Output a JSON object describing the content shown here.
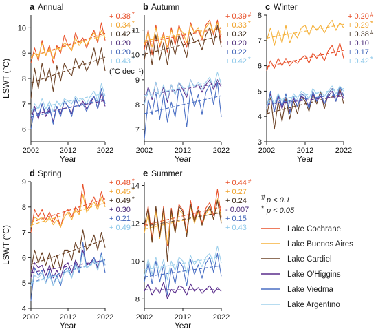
{
  "colors": {
    "Lake Cochrane": "#e8502a",
    "Lake Buenos Aires": "#f5b23c",
    "Lake Cardiel": "#7a4a2a",
    "Lake O'Higgins": "#4b2a78",
    "Lake Viedma": "#7b3fb0",
    "Lake Argentino": "#9fd1ec",
    "Lake Argentino (series)": "#9fd1ec",
    "Lake Viedma (blue)": "#4a73c9"
  },
  "series_order": [
    "Lake Cochrane",
    "Lake Buenos Aires",
    "Lake Cardiel",
    "Lake O'Higgins",
    "Lake Viedma",
    "Lake Argentino"
  ],
  "ylabel": "LSWT (°C)",
  "xlabel": "Year",
  "unit_note": "(°C dec⁻¹)",
  "significance": {
    "hash_note": "p < 0.1",
    "star_note": "p < 0.05"
  },
  "legend": {
    "items": [
      "Lake Cochrane",
      "Lake Buenos Aires",
      "Lake Cardiel",
      "Lake O'Higgins",
      "Lake Viedma",
      "Lake Argentino"
    ]
  },
  "chart_data": [
    {
      "type": "line",
      "panel_letter": "a",
      "title": "Annual",
      "x": [
        2002,
        2003,
        2004,
        2005,
        2006,
        2007,
        2008,
        2009,
        2010,
        2011,
        2012,
        2013,
        2014,
        2015,
        2016,
        2017,
        2018,
        2019,
        2020,
        2021,
        2022
      ],
      "xticks": [
        "2002",
        "2012",
        "2022"
      ],
      "ylim": [
        5.5,
        10.5
      ],
      "yticks": [
        "6",
        "7",
        "8",
        "9",
        "10"
      ],
      "series": [
        {
          "name": "Lake Cochrane",
          "trend": "+ 0.38",
          "sig": "*",
          "values": [
            8.6,
            9.2,
            8.7,
            9.5,
            8.9,
            9.3,
            8.6,
            9.3,
            9.0,
            9.7,
            9.3,
            9.1,
            9.8,
            9.4,
            9.6,
            9.2,
            9.6,
            9.9,
            9.4,
            10.2,
            9.5
          ]
        },
        {
          "name": "Lake Buenos Aires",
          "trend": "+ 0.34",
          "sig": "*",
          "values": [
            8.8,
            9.0,
            8.8,
            9.4,
            8.9,
            9.2,
            8.8,
            9.2,
            9.1,
            9.4,
            9.3,
            9.1,
            9.6,
            9.3,
            9.5,
            9.3,
            9.6,
            9.8,
            9.5,
            9.9,
            9.6
          ]
        },
        {
          "name": "Lake Cardiel",
          "trend": "+ 0.42",
          "sig": "*",
          "values": [
            7.2,
            8.4,
            7.6,
            8.6,
            7.9,
            8.4,
            7.5,
            8.5,
            7.9,
            8.6,
            8.3,
            8.1,
            8.8,
            8.4,
            8.7,
            8.3,
            8.6,
            9.2,
            8.5,
            9.2,
            8.3
          ]
        },
        {
          "name": "Lake O'Higgins",
          "trend": "+ 0.20",
          "sig": "",
          "values": [
            6.4,
            6.9,
            6.4,
            7.0,
            6.5,
            6.8,
            6.3,
            6.9,
            6.6,
            7.1,
            6.9,
            6.6,
            7.2,
            6.9,
            7.1,
            6.8,
            7.0,
            7.3,
            6.8,
            7.4,
            6.9
          ]
        },
        {
          "name": "Lake Viedma",
          "trend": "+ 0.20",
          "sig": "",
          "values": [
            6.0,
            6.8,
            6.5,
            7.0,
            6.6,
            6.9,
            6.2,
            6.9,
            6.5,
            7.1,
            6.9,
            6.5,
            7.2,
            6.9,
            7.0,
            6.7,
            7.1,
            7.3,
            6.8,
            7.6,
            7.0
          ]
        },
        {
          "name": "Lake Argentino",
          "trend": "+ 0.43",
          "sig": "*",
          "values": [
            6.5,
            7.0,
            6.8,
            7.2,
            6.8,
            7.1,
            6.7,
            7.1,
            6.9,
            7.2,
            7.1,
            7.0,
            7.3,
            7.1,
            7.2,
            7.0,
            7.3,
            7.5,
            7.1,
            7.8,
            7.3
          ]
        }
      ]
    },
    {
      "type": "line",
      "panel_letter": "b",
      "title": "Autumn",
      "x": [
        2002,
        2003,
        2004,
        2005,
        2006,
        2007,
        2008,
        2009,
        2010,
        2011,
        2012,
        2013,
        2014,
        2015,
        2016,
        2017,
        2018,
        2019,
        2020,
        2021,
        2022
      ],
      "xticks": [
        "2002",
        "2012",
        "2022"
      ],
      "ylim": [
        6.5,
        11.6
      ],
      "yticks": [
        "7",
        "8",
        "9",
        "10",
        "11"
      ],
      "series": [
        {
          "name": "Lake Cochrane",
          "trend": "+ 0.39",
          "sig": "#",
          "values": [
            10.2,
            11.0,
            10.0,
            11.2,
            10.3,
            10.9,
            10.1,
            11.1,
            10.4,
            11.2,
            10.7,
            10.3,
            11.3,
            10.9,
            11.0,
            10.6,
            11.2,
            11.4,
            10.8,
            11.4,
            10.5
          ]
        },
        {
          "name": "Lake Buenos Aires",
          "trend": "+ 0.33",
          "sig": "*",
          "values": [
            10.4,
            10.9,
            10.3,
            11.1,
            10.4,
            10.8,
            10.3,
            11.0,
            10.6,
            11.1,
            10.9,
            10.5,
            11.2,
            10.9,
            11.1,
            10.7,
            11.1,
            11.3,
            10.9,
            11.3,
            10.8
          ]
        },
        {
          "name": "Lake Cardiel",
          "trend": "+ 0.32",
          "sig": "",
          "values": [
            9.8,
            10.6,
            9.6,
            10.8,
            9.8,
            10.5,
            9.6,
            10.6,
            10.0,
            10.8,
            10.4,
            9.9,
            10.9,
            10.5,
            10.6,
            10.2,
            10.8,
            11.1,
            10.4,
            11.2,
            10.3
          ]
        },
        {
          "name": "Lake O'Higgins",
          "trend": "+ 0.20",
          "sig": "",
          "values": [
            8.0,
            8.7,
            8.2,
            8.9,
            8.3,
            8.7,
            8.1,
            8.8,
            8.4,
            8.9,
            8.6,
            8.3,
            9.0,
            8.7,
            8.8,
            8.5,
            8.8,
            9.0,
            8.6,
            9.0,
            8.7
          ]
        },
        {
          "name": "Lake Viedma",
          "trend": "+ 0.22",
          "sig": "",
          "values": [
            6.6,
            8.2,
            7.6,
            8.5,
            7.4,
            8.4,
            7.3,
            8.1,
            7.5,
            8.7,
            8.3,
            7.1,
            8.6,
            7.9,
            8.4,
            7.6,
            8.5,
            8.8,
            8.0,
            8.9,
            7.5
          ]
        },
        {
          "name": "Lake Argentino",
          "trend": "+ 0.42",
          "sig": "*",
          "values": [
            8.0,
            8.6,
            8.3,
            8.9,
            8.3,
            8.8,
            8.2,
            8.8,
            8.4,
            8.9,
            8.7,
            8.4,
            9.0,
            8.7,
            8.9,
            8.6,
            8.9,
            9.1,
            8.7,
            9.3,
            8.8
          ]
        }
      ]
    },
    {
      "type": "line",
      "panel_letter": "c",
      "title": "Winter",
      "x": [
        2002,
        2003,
        2004,
        2005,
        2006,
        2007,
        2008,
        2009,
        2010,
        2011,
        2012,
        2013,
        2014,
        2015,
        2016,
        2017,
        2018,
        2019,
        2020,
        2021,
        2022
      ],
      "xticks": [
        "2002",
        "2012",
        "2022"
      ],
      "ylim": [
        3,
        8
      ],
      "yticks": [
        "3",
        "4",
        "5",
        "6",
        "7",
        "8"
      ],
      "series": [
        {
          "name": "Lake Cochrane",
          "trend": "+ 0.20",
          "sig": "#",
          "values": [
            5.8,
            6.2,
            5.9,
            6.3,
            6.0,
            6.3,
            6.0,
            6.2,
            6.1,
            6.3,
            6.4,
            6.1,
            6.5,
            6.3,
            6.5,
            6.2,
            6.6,
            6.8,
            6.4,
            6.9,
            6.3
          ]
        },
        {
          "name": "Lake Buenos Aires",
          "trend": "+ 0.29",
          "sig": "*",
          "values": [
            7.0,
            7.5,
            6.8,
            7.4,
            6.9,
            7.6,
            6.9,
            7.3,
            7.1,
            7.5,
            7.6,
            7.2,
            7.6,
            7.4,
            7.6,
            7.3,
            7.6,
            7.8,
            7.4,
            7.7,
            7.5
          ]
        },
        {
          "name": "Lake Cardiel",
          "trend": "+ 0.38",
          "sig": "#",
          "values": [
            4.0,
            4.8,
            3.5,
            4.6,
            3.8,
            4.7,
            3.9,
            4.6,
            4.1,
            4.8,
            4.6,
            4.2,
            4.9,
            4.5,
            5.0,
            4.3,
            4.9,
            5.1,
            4.6,
            5.1,
            4.5
          ]
        },
        {
          "name": "Lake O'Higgins",
          "trend": "+ 0.10",
          "sig": "",
          "values": [
            4.4,
            4.9,
            4.2,
            4.8,
            4.3,
            4.8,
            4.2,
            4.7,
            4.4,
            4.8,
            4.7,
            4.4,
            4.9,
            4.6,
            4.8,
            4.5,
            4.8,
            5.0,
            4.6,
            5.0,
            4.7
          ]
        },
        {
          "name": "Lake Viedma",
          "trend": "+ 0.17",
          "sig": "",
          "values": [
            4.3,
            5.0,
            4.2,
            4.9,
            4.4,
            4.9,
            4.1,
            4.8,
            4.4,
            4.9,
            4.8,
            4.3,
            5.0,
            4.6,
            4.9,
            4.5,
            4.9,
            5.1,
            4.6,
            5.2,
            4.8
          ]
        },
        {
          "name": "Lake Argentino",
          "trend": "+ 0.42",
          "sig": "*",
          "values": [
            4.4,
            4.8,
            4.5,
            4.9,
            4.6,
            4.8,
            4.5,
            4.9,
            4.7,
            5.0,
            4.9,
            4.7,
            5.1,
            4.9,
            5.0,
            4.8,
            5.0,
            5.2,
            4.9,
            5.2,
            5.0
          ]
        }
      ]
    },
    {
      "type": "line",
      "panel_letter": "d",
      "title": "Spring",
      "x": [
        2002,
        2003,
        2004,
        2005,
        2006,
        2007,
        2008,
        2009,
        2010,
        2011,
        2012,
        2013,
        2014,
        2015,
        2016,
        2017,
        2018,
        2019,
        2020,
        2021,
        2022
      ],
      "xticks": [
        "2002",
        "2012",
        "2022"
      ],
      "ylim": [
        4,
        9
      ],
      "yticks": [
        "4",
        "5",
        "6",
        "7",
        "8",
        "9"
      ],
      "series": [
        {
          "name": "Lake Cochrane",
          "trend": "+ 0.48",
          "sig": "*",
          "values": [
            7.0,
            7.9,
            7.6,
            7.9,
            7.5,
            7.8,
            7.4,
            7.7,
            7.2,
            7.8,
            7.9,
            7.6,
            8.0,
            7.8,
            8.9,
            7.9,
            8.1,
            8.4,
            8.0,
            8.6,
            8.1
          ]
        },
        {
          "name": "Lake Buenos Aires",
          "trend": "+ 0.45",
          "sig": "*",
          "values": [
            7.2,
            7.6,
            7.5,
            7.6,
            7.4,
            7.6,
            7.3,
            7.5,
            7.2,
            7.6,
            7.8,
            7.5,
            7.9,
            7.7,
            8.5,
            7.8,
            8.0,
            8.2,
            7.9,
            8.4,
            8.0
          ]
        },
        {
          "name": "Lake Cardiel",
          "trend": "+ 0.49",
          "sig": "*",
          "values": [
            5.5,
            6.3,
            5.8,
            6.2,
            5.7,
            6.2,
            5.6,
            6.1,
            5.5,
            6.3,
            6.3,
            5.9,
            6.6,
            6.2,
            7.1,
            6.3,
            6.5,
            6.9,
            6.3,
            7.0,
            6.4
          ]
        },
        {
          "name": "Lake O'Higgins",
          "trend": "+ 0.30",
          "sig": "",
          "values": [
            5.2,
            5.8,
            5.6,
            5.7,
            5.3,
            5.7,
            5.2,
            5.5,
            5.2,
            5.7,
            5.8,
            5.4,
            5.9,
            5.6,
            6.3,
            5.7,
            5.8,
            6.0,
            5.6,
            6.1,
            5.7
          ]
        },
        {
          "name": "Lake Viedma",
          "trend": "+ 0.21",
          "sig": "",
          "values": [
            4.3,
            5.6,
            5.3,
            5.5,
            5.0,
            5.5,
            4.9,
            5.3,
            4.9,
            5.5,
            5.6,
            5.2,
            5.8,
            5.4,
            6.6,
            5.6,
            5.7,
            6.0,
            5.5,
            6.2,
            5.4
          ]
        },
        {
          "name": "Lake Argentino",
          "trend": "+ 0.49",
          "sig": "*",
          "values": [
            4.9,
            5.3,
            5.2,
            5.4,
            5.0,
            5.3,
            4.9,
            5.2,
            5.0,
            5.4,
            5.5,
            5.2,
            5.7,
            5.5,
            6.2,
            5.6,
            5.7,
            5.9,
            5.5,
            6.1,
            5.7
          ]
        }
      ]
    },
    {
      "type": "line",
      "panel_letter": "e",
      "title": "Summer",
      "x": [
        2002,
        2003,
        2004,
        2005,
        2006,
        2007,
        2008,
        2009,
        2010,
        2011,
        2012,
        2013,
        2014,
        2015,
        2016,
        2017,
        2018,
        2019,
        2020,
        2021,
        2022
      ],
      "xticks": [
        "2002",
        "2012",
        "2022"
      ],
      "ylim": [
        7.5,
        14.2
      ],
      "yticks": [
        "8",
        "10",
        "12",
        "14"
      ],
      "series": [
        {
          "name": "Lake Cochrane",
          "trend": "+ 0.44",
          "sig": "#",
          "values": [
            11.8,
            12.9,
            11.2,
            12.8,
            11.4,
            12.9,
            10.8,
            12.8,
            11.6,
            13.0,
            12.7,
            11.5,
            13.2,
            12.2,
            12.9,
            12.0,
            12.8,
            13.1,
            12.4,
            13.8,
            12.3
          ]
        },
        {
          "name": "Lake Buenos Aires",
          "trend": "+ 0.27",
          "sig": "",
          "values": [
            11.5,
            12.5,
            11.0,
            12.6,
            11.2,
            12.6,
            10.9,
            12.5,
            11.5,
            12.7,
            12.5,
            11.4,
            12.9,
            12.0,
            12.6,
            11.9,
            12.5,
            12.8,
            12.2,
            13.3,
            12.1
          ]
        },
        {
          "name": "Lake Cardiel",
          "trend": "+ 0.24",
          "sig": "",
          "values": [
            11.9,
            12.8,
            11.0,
            12.9,
            11.3,
            12.8,
            10.0,
            12.7,
            11.5,
            12.9,
            12.6,
            11.3,
            13.0,
            12.1,
            12.7,
            11.9,
            12.6,
            12.9,
            12.2,
            13.2,
            12.0
          ]
        },
        {
          "name": "Lake O'Higgins",
          "trend": "- 0.007",
          "sig": "",
          "values": [
            8.4,
            8.8,
            8.2,
            8.6,
            8.3,
            8.9,
            8.0,
            8.5,
            8.3,
            8.7,
            8.6,
            8.2,
            8.8,
            8.4,
            8.6,
            8.3,
            8.5,
            8.7,
            8.3,
            8.6,
            8.4
          ]
        },
        {
          "name": "Lake Viedma",
          "trend": "+ 0.15",
          "sig": "",
          "values": [
            8.9,
            9.9,
            8.8,
            10.0,
            8.9,
            9.8,
            8.2,
            9.6,
            8.8,
            10.0,
            9.7,
            8.7,
            10.1,
            9.3,
            9.8,
            9.1,
            9.9,
            10.2,
            9.4,
            10.4,
            9.2
          ]
        },
        {
          "name": "Lake Argentino",
          "trend": "+ 0.43",
          "sig": "",
          "values": [
            9.2,
            10.1,
            9.3,
            10.2,
            9.4,
            10.1,
            9.0,
            10.0,
            9.5,
            10.2,
            10.0,
            9.4,
            10.3,
            9.8,
            10.1,
            9.7,
            10.2,
            10.4,
            9.9,
            10.8,
            9.9
          ]
        }
      ]
    }
  ]
}
